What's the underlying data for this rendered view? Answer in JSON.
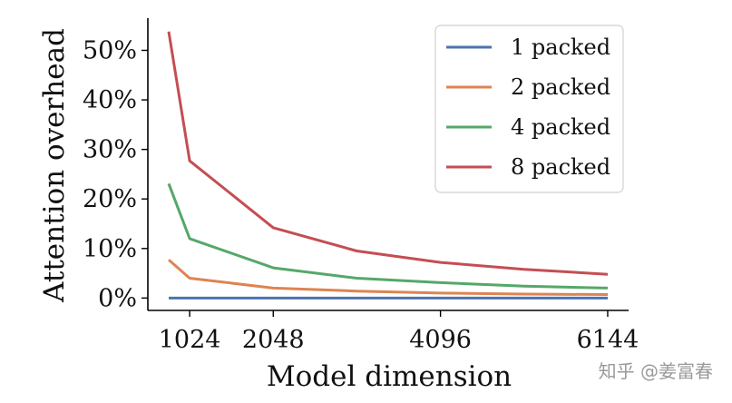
{
  "chart_data": {
    "type": "line",
    "title": "",
    "xlabel": "Model dimension",
    "ylabel": "Attention overhead",
    "x": [
      768,
      1024,
      2048,
      3072,
      4096,
      5120,
      6144
    ],
    "xticks": [
      1024,
      2048,
      4096,
      6144
    ],
    "xtick_labels": [
      "1024",
      "2048",
      "4096",
      "6144"
    ],
    "xlim": [
      512,
      6400
    ],
    "yticks": [
      0,
      10,
      20,
      30,
      40,
      50
    ],
    "ytick_labels": [
      "0%",
      "10%",
      "20%",
      "30%",
      "40%",
      "50%"
    ],
    "ylim": [
      -2.5,
      56.5
    ],
    "grid": false,
    "legend_position": "top-right",
    "series": [
      {
        "name": "1 packed",
        "color": "#4c72b0",
        "values": [
          0,
          0,
          0,
          0,
          0,
          0,
          0
        ]
      },
      {
        "name": "2 packed",
        "color": "#dd8452",
        "values": [
          7.7,
          4.0,
          2.0,
          1.4,
          1.0,
          0.8,
          0.7
        ]
      },
      {
        "name": "4 packed",
        "color": "#55a868",
        "values": [
          23.1,
          12.0,
          6.1,
          4.0,
          3.1,
          2.4,
          2.0
        ]
      },
      {
        "name": "8 packed",
        "color": "#c44e52",
        "values": [
          53.8,
          27.7,
          14.2,
          9.5,
          7.2,
          5.8,
          4.8
        ]
      }
    ]
  },
  "watermark": "知乎 @姜富春"
}
